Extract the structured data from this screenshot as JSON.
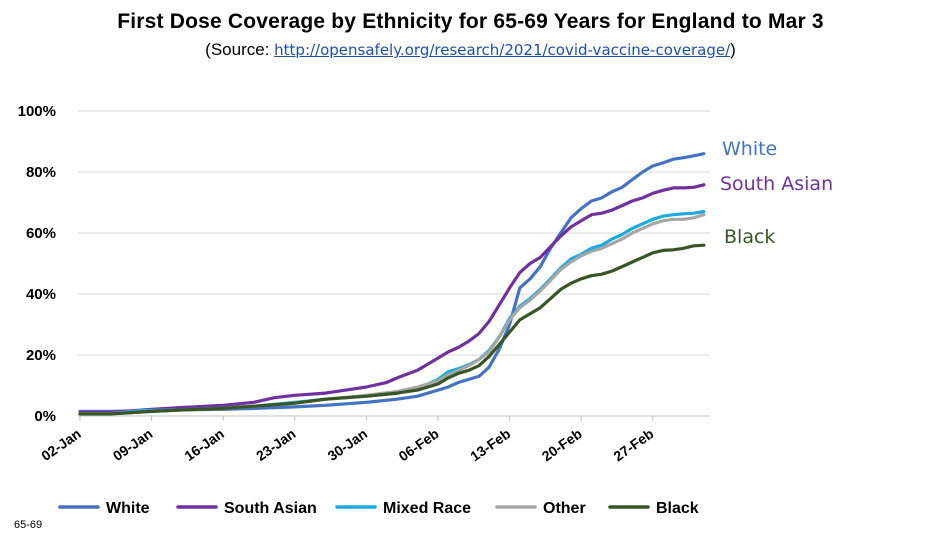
{
  "title": "First Dose Coverage by Ethnicity for 65-69 Years for England to Mar 3",
  "subtitle_prefix": "(Source: ",
  "subtitle_link": "http://opensafely.org/research/2021/covid-vaccine-coverage/",
  "subtitle_suffix": ")",
  "footnote": "65-69",
  "chart_data": {
    "type": "line",
    "title": "First Dose Coverage by Ethnicity for 65-69 Years for England to Mar 3",
    "xlabel": "",
    "ylabel": "",
    "x_ticks": [
      "02-Jan",
      "09-Jan",
      "16-Jan",
      "23-Jan",
      "30-Jan",
      "06-Feb",
      "13-Feb",
      "20-Feb",
      "27-Feb"
    ],
    "x_range_days": [
      0,
      61
    ],
    "ylim": [
      0,
      100
    ],
    "y_ticks": [
      "0%",
      "20%",
      "40%",
      "60%",
      "80%",
      "100%"
    ],
    "grid": "horizontal",
    "legend": "bottom",
    "direct_labels": [
      "White",
      "South Asian",
      "Black"
    ],
    "series": [
      {
        "name": "White",
        "color": "#4472c4",
        "points": [
          [
            0,
            1.5
          ],
          [
            3,
            1.5
          ],
          [
            7,
            1.7
          ],
          [
            10,
            2
          ],
          [
            14,
            2.2
          ],
          [
            17,
            2.5
          ],
          [
            21,
            3
          ],
          [
            24,
            3.5
          ],
          [
            28,
            4.5
          ],
          [
            31,
            5.5
          ],
          [
            33,
            6.5
          ],
          [
            35,
            8.5
          ],
          [
            36,
            9.5
          ],
          [
            37,
            11
          ],
          [
            38,
            12
          ],
          [
            39,
            13
          ],
          [
            40,
            16
          ],
          [
            41,
            22
          ],
          [
            42,
            30
          ],
          [
            43,
            42
          ],
          [
            44,
            45
          ],
          [
            45,
            49
          ],
          [
            46,
            55
          ],
          [
            47,
            60
          ],
          [
            48,
            65
          ],
          [
            49,
            68
          ],
          [
            50,
            70.5
          ],
          [
            51,
            71.5
          ],
          [
            52,
            73.5
          ],
          [
            53,
            75
          ],
          [
            54,
            77.5
          ],
          [
            55,
            80
          ],
          [
            56,
            82
          ],
          [
            57,
            83
          ],
          [
            58,
            84.2
          ],
          [
            59,
            84.7
          ],
          [
            60,
            85.3
          ],
          [
            61,
            86
          ]
        ]
      },
      {
        "name": "South Asian",
        "color": "#7030a0",
        "points": [
          [
            0,
            1.2
          ],
          [
            3,
            1.2
          ],
          [
            7,
            2.2
          ],
          [
            10,
            2.8
          ],
          [
            14,
            3.5
          ],
          [
            17,
            4.5
          ],
          [
            19,
            6
          ],
          [
            21,
            6.8
          ],
          [
            24,
            7.5
          ],
          [
            26,
            8.5
          ],
          [
            28,
            9.5
          ],
          [
            30,
            11
          ],
          [
            31,
            12.5
          ],
          [
            33,
            15
          ],
          [
            35,
            19
          ],
          [
            36,
            21
          ],
          [
            37,
            22.5
          ],
          [
            38,
            24.5
          ],
          [
            39,
            27
          ],
          [
            40,
            31
          ],
          [
            41,
            36.5
          ],
          [
            42,
            42
          ],
          [
            43,
            47
          ],
          [
            44,
            50
          ],
          [
            45,
            52
          ],
          [
            46,
            55.5
          ],
          [
            47,
            59
          ],
          [
            48,
            62
          ],
          [
            49,
            64
          ],
          [
            50,
            66
          ],
          [
            51,
            66.5
          ],
          [
            52,
            67.5
          ],
          [
            53,
            69
          ],
          [
            54,
            70.5
          ],
          [
            55,
            71.5
          ],
          [
            56,
            73
          ],
          [
            57,
            74
          ],
          [
            58,
            74.8
          ],
          [
            59,
            74.8
          ],
          [
            60,
            75
          ],
          [
            61,
            75.8
          ]
        ]
      },
      {
        "name": "Mixed Race",
        "color": "#1aa9e0",
        "points": [
          [
            0,
            0.8
          ],
          [
            3,
            0.8
          ],
          [
            6,
            1.8
          ],
          [
            10,
            2
          ],
          [
            14,
            2.6
          ],
          [
            17,
            3.2
          ],
          [
            21,
            4.5
          ],
          [
            24,
            5.5
          ],
          [
            28,
            6.5
          ],
          [
            31,
            7.5
          ],
          [
            33,
            9
          ],
          [
            35,
            12
          ],
          [
            36,
            14.5
          ],
          [
            37,
            15.5
          ],
          [
            38,
            16.8
          ],
          [
            39,
            18.5
          ],
          [
            40,
            21.5
          ],
          [
            41,
            26
          ],
          [
            42,
            32
          ],
          [
            43,
            36
          ],
          [
            44,
            38.5
          ],
          [
            45,
            41.5
          ],
          [
            46,
            45
          ],
          [
            47,
            48.5
          ],
          [
            48,
            51.5
          ],
          [
            49,
            53
          ],
          [
            50,
            55
          ],
          [
            51,
            56
          ],
          [
            52,
            58
          ],
          [
            53,
            59.5
          ],
          [
            54,
            61.5
          ],
          [
            55,
            63
          ],
          [
            56,
            64.5
          ],
          [
            57,
            65.5
          ],
          [
            58,
            66
          ],
          [
            59,
            66.3
          ],
          [
            60,
            66.5
          ],
          [
            61,
            67
          ]
        ]
      },
      {
        "name": "Other",
        "color": "#a6a6a6",
        "points": [
          [
            0,
            0.8
          ],
          [
            3,
            0.8
          ],
          [
            7,
            1.5
          ],
          [
            10,
            2
          ],
          [
            14,
            2.5
          ],
          [
            17,
            3.2
          ],
          [
            21,
            4.2
          ],
          [
            24,
            5.5
          ],
          [
            28,
            6.8
          ],
          [
            31,
            8
          ],
          [
            33,
            9.5
          ],
          [
            35,
            11.5
          ],
          [
            36,
            13.5
          ],
          [
            37,
            15
          ],
          [
            38,
            16.5
          ],
          [
            39,
            18.5
          ],
          [
            40,
            21
          ],
          [
            41,
            26
          ],
          [
            42,
            31.5
          ],
          [
            43,
            35.5
          ],
          [
            44,
            38
          ],
          [
            45,
            41
          ],
          [
            46,
            44.5
          ],
          [
            47,
            48
          ],
          [
            48,
            50.5
          ],
          [
            49,
            52.5
          ],
          [
            50,
            54
          ],
          [
            51,
            55
          ],
          [
            52,
            56.5
          ],
          [
            53,
            58
          ],
          [
            54,
            60
          ],
          [
            55,
            61.5
          ],
          [
            56,
            63
          ],
          [
            57,
            64
          ],
          [
            58,
            64.5
          ],
          [
            59,
            64.5
          ],
          [
            60,
            65
          ],
          [
            61,
            66
          ]
        ]
      },
      {
        "name": "Black",
        "color": "#375623",
        "points": [
          [
            0,
            0.7
          ],
          [
            3,
            0.7
          ],
          [
            7,
            1.5
          ],
          [
            10,
            2
          ],
          [
            14,
            2.5
          ],
          [
            17,
            3.2
          ],
          [
            21,
            4.2
          ],
          [
            24,
            5.5
          ],
          [
            28,
            6.5
          ],
          [
            31,
            7.5
          ],
          [
            33,
            8.5
          ],
          [
            35,
            10.5
          ],
          [
            36,
            12.5
          ],
          [
            37,
            14
          ],
          [
            38,
            15
          ],
          [
            39,
            16.5
          ],
          [
            40,
            19.5
          ],
          [
            41,
            23.5
          ],
          [
            42,
            27.5
          ],
          [
            43,
            31.5
          ],
          [
            44,
            33.5
          ],
          [
            45,
            35.5
          ],
          [
            46,
            38.5
          ],
          [
            47,
            41.5
          ],
          [
            48,
            43.5
          ],
          [
            49,
            45
          ],
          [
            50,
            46
          ],
          [
            51,
            46.5
          ],
          [
            52,
            47.5
          ],
          [
            53,
            49
          ],
          [
            54,
            50.5
          ],
          [
            55,
            52
          ],
          [
            56,
            53.5
          ],
          [
            57,
            54.3
          ],
          [
            58,
            54.5
          ],
          [
            59,
            55
          ],
          [
            60,
            55.8
          ],
          [
            61,
            56
          ]
        ]
      }
    ]
  }
}
